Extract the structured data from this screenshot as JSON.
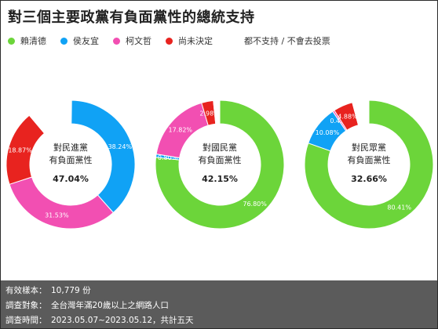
{
  "title": "對三個主要政黨有負面黨性的總統支持",
  "legend": [
    {
      "label": "賴清德",
      "color": "#6cd53a"
    },
    {
      "label": "侯友宜",
      "color": "#10a2f5"
    },
    {
      "label": "柯文哲",
      "color": "#f24fb2"
    },
    {
      "label": "尚未決定",
      "color": "#e8231f"
    }
  ],
  "legend_other": "都不支持 / 不會去投票",
  "chart_data": [
    {
      "type": "pie",
      "center_lines": [
        "對民進黨",
        "有負面黨性"
      ],
      "center_value": "47.04%",
      "slices": [
        {
          "name": "賴清德",
          "value": 0.24,
          "label": "0.24%"
        },
        {
          "name": "侯友宜",
          "value": 38.24,
          "label": "38.24%"
        },
        {
          "name": "柯文哲",
          "value": 31.53,
          "label": "31.53%"
        },
        {
          "name": "尚未決定",
          "value": 18.87,
          "label": "18.87%"
        },
        {
          "name": "都不支持 / 不會去投票",
          "value": 11.12,
          "label": ""
        }
      ]
    },
    {
      "type": "pie",
      "center_lines": [
        "對國民黨",
        "有負面黨性"
      ],
      "center_value": "42.15%",
      "slices": [
        {
          "name": "賴清德",
          "value": 76.8,
          "label": "76.80%"
        },
        {
          "name": "侯友宜",
          "value": 0.8,
          "label": "0.80%"
        },
        {
          "name": "柯文哲",
          "value": 17.82,
          "label": "17.82%"
        },
        {
          "name": "尚未決定",
          "value": 2.98,
          "label": "2.98%"
        },
        {
          "name": "都不支持 / 不會去投票",
          "value": 1.6,
          "label": ""
        }
      ]
    },
    {
      "type": "pie",
      "center_lines": [
        "對民眾黨",
        "有負面黨性"
      ],
      "center_value": "32.66%",
      "slices": [
        {
          "name": "賴清德",
          "value": 80.41,
          "label": "80.41%"
        },
        {
          "name": "侯友宜",
          "value": 10.08,
          "label": "10.08%"
        },
        {
          "name": "柯文哲",
          "value": 0.47,
          "label": "0.47%"
        },
        {
          "name": "尚未決定",
          "value": 4.88,
          "label": "4.88%"
        },
        {
          "name": "都不支持 / 不會去投票",
          "value": 4.16,
          "label": ""
        }
      ]
    }
  ],
  "colors": {
    "other_slice": "#ffffff",
    "footer_bg": "#5b5b5b"
  },
  "footer": [
    {
      "key": "有效樣本：",
      "value": "10,779 份"
    },
    {
      "key": "調查對象：",
      "value": "全台灣年滿20歲以上之網路人口"
    },
    {
      "key": "調查時間：",
      "value": "2023.05.07~2023.05.12，共計五天"
    }
  ]
}
